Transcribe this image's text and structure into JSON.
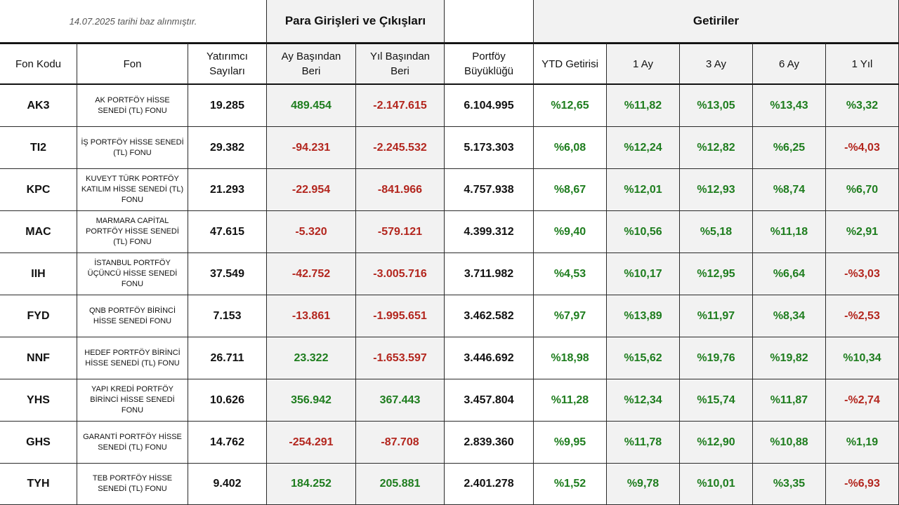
{
  "header": {
    "note": "14.07.2025  tarihi baz alınmıştır.",
    "group_flows": "Para Girişleri ve Çıkışları",
    "group_returns": "Getiriler"
  },
  "columns": {
    "code": "Fon Kodu",
    "fund": "Fon",
    "investors_1": "Yatırımcı",
    "investors_2": "Sayıları",
    "mtd_1": "Ay Başından",
    "mtd_2": "Beri",
    "ytd_1": "Yıl Başından",
    "ytd_2": "Beri",
    "size_1": "Portföy",
    "size_2": "Büyüklüğü",
    "ytd_return": "YTD Getirisi",
    "m1": "1 Ay",
    "m3": "3 Ay",
    "m6": "6 Ay",
    "y1": "1 Yıl"
  },
  "colors": {
    "positive": "#1e7d1e",
    "negative": "#b3261e",
    "shaded_bg": "#f2f2f2",
    "border": "#2a2a2a"
  },
  "rows": [
    {
      "code": "AK3",
      "fund": "AK PORTFÖY HİSSE SENEDİ (TL) FONU",
      "investors": "19.285",
      "mtd": "489.454",
      "ytd": "-2.147.615",
      "size": "6.104.995",
      "ytd_return": "%12,65",
      "m1": "%11,82",
      "m3": "%13,05",
      "m6": "%13,43",
      "y1": "%3,32"
    },
    {
      "code": "TI2",
      "fund": "İŞ PORTFÖY HİSSE SENEDİ (TL) FONU",
      "investors": "29.382",
      "mtd": "-94.231",
      "ytd": "-2.245.532",
      "size": "5.173.303",
      "ytd_return": "%6,08",
      "m1": "%12,24",
      "m3": "%12,82",
      "m6": "%6,25",
      "y1": "-%4,03"
    },
    {
      "code": "KPC",
      "fund": "KUVEYT TÜRK PORTFÖY KATILIM HİSSE SENEDİ (TL) FONU",
      "investors": "21.293",
      "mtd": "-22.954",
      "ytd": "-841.966",
      "size": "4.757.938",
      "ytd_return": "%8,67",
      "m1": "%12,01",
      "m3": "%12,93",
      "m6": "%8,74",
      "y1": "%6,70"
    },
    {
      "code": "MAC",
      "fund": "MARMARA CAPİTAL PORTFÖY HİSSE SENEDİ (TL) FONU",
      "investors": "47.615",
      "mtd": "-5.320",
      "ytd": "-579.121",
      "size": "4.399.312",
      "ytd_return": "%9,40",
      "m1": "%10,56",
      "m3": "%5,18",
      "m6": "%11,18",
      "y1": "%2,91"
    },
    {
      "code": "IIH",
      "fund": "İSTANBUL PORTFÖY ÜÇÜNCÜ HİSSE SENEDİ FONU",
      "investors": "37.549",
      "mtd": "-42.752",
      "ytd": "-3.005.716",
      "size": "3.711.982",
      "ytd_return": "%4,53",
      "m1": "%10,17",
      "m3": "%12,95",
      "m6": "%6,64",
      "y1": "-%3,03"
    },
    {
      "code": "FYD",
      "fund": "QNB PORTFÖY BİRİNCİ HİSSE SENEDİ FONU",
      "investors": "7.153",
      "mtd": "-13.861",
      "ytd": "-1.995.651",
      "size": "3.462.582",
      "ytd_return": "%7,97",
      "m1": "%13,89",
      "m3": "%11,97",
      "m6": "%8,34",
      "y1": "-%2,53"
    },
    {
      "code": "NNF",
      "fund": "HEDEF PORTFÖY BİRİNCİ HİSSE SENEDİ (TL) FONU",
      "investors": "26.711",
      "mtd": "23.322",
      "ytd": "-1.653.597",
      "size": "3.446.692",
      "ytd_return": "%18,98",
      "m1": "%15,62",
      "m3": "%19,76",
      "m6": "%19,82",
      "y1": "%10,34"
    },
    {
      "code": "YHS",
      "fund": "YAPI KREDİ PORTFÖY BİRİNCİ HİSSE SENEDİ FONU",
      "investors": "10.626",
      "mtd": "356.942",
      "ytd": "367.443",
      "size": "3.457.804",
      "ytd_return": "%11,28",
      "m1": "%12,34",
      "m3": "%15,74",
      "m6": "%11,87",
      "y1": "-%2,74"
    },
    {
      "code": "GHS",
      "fund": "GARANTİ PORTFÖY HİSSE SENEDİ (TL) FONU",
      "investors": "14.762",
      "mtd": "-254.291",
      "ytd": "-87.708",
      "size": "2.839.360",
      "ytd_return": "%9,95",
      "m1": "%11,78",
      "m3": "%12,90",
      "m6": "%10,88",
      "y1": "%1,19"
    },
    {
      "code": "TYH",
      "fund": "TEB PORTFÖY HİSSE SENEDİ (TL) FONU",
      "investors": "9.402",
      "mtd": "184.252",
      "ytd": "205.881",
      "size": "2.401.278",
      "ytd_return": "%1,52",
      "m1": "%9,78",
      "m3": "%10,01",
      "m6": "%3,35",
      "y1": "-%6,93"
    }
  ]
}
